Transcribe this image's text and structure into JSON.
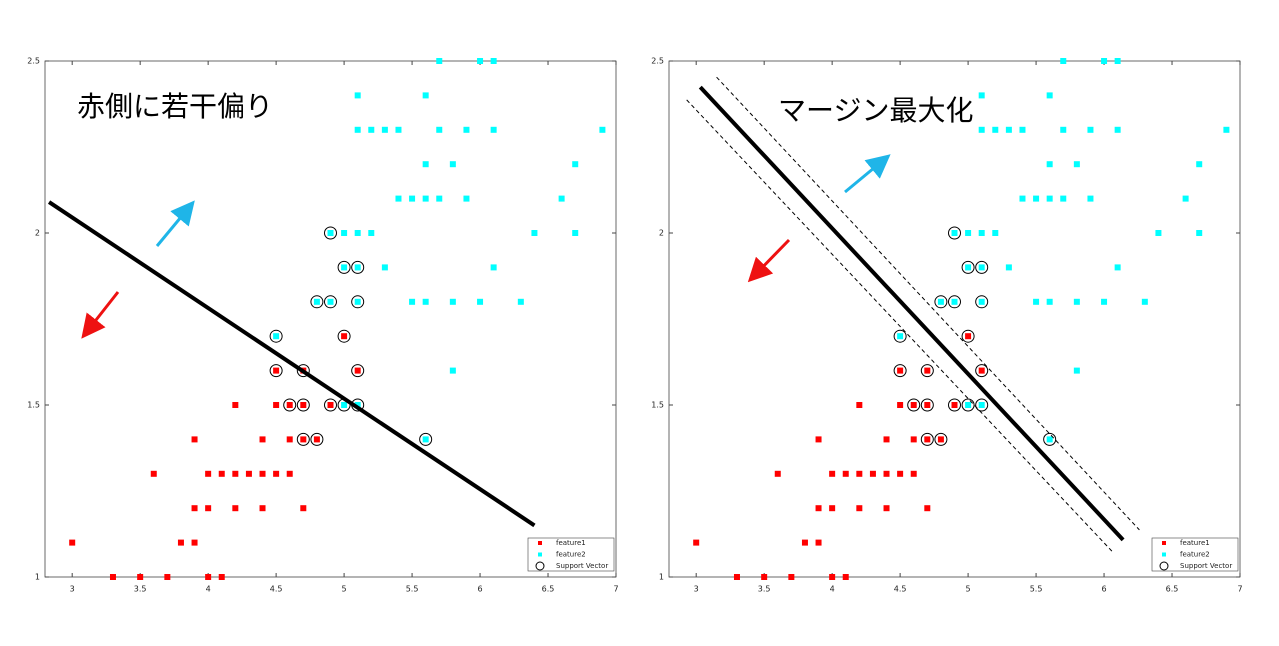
{
  "chart_data": [
    {
      "type": "scatter",
      "annotation": "赤側に若干偏り",
      "xlim": [
        2.8,
        7
      ],
      "ylim": [
        1,
        2.5
      ],
      "xticks": [
        3,
        3.5,
        4,
        4.5,
        5,
        5.5,
        6,
        6.5,
        7
      ],
      "yticks": [
        1,
        1.5,
        2,
        2.5
      ],
      "grid": false,
      "legend": "lower right",
      "series": [
        {
          "name": "feature1",
          "color": "#ff0000",
          "marker": "square",
          "x": [
            3.0,
            3.3,
            3.5,
            3.7,
            4.0,
            4.1,
            3.8,
            3.9,
            3.9,
            4.0,
            4.2,
            4.4,
            4.7,
            3.6,
            4.0,
            4.1,
            4.2,
            4.3,
            4.4,
            4.5,
            4.6,
            3.9,
            4.4,
            4.6,
            4.7,
            4.8,
            4.2,
            4.5,
            4.6,
            4.7,
            4.9,
            4.5,
            4.7,
            5.1,
            5.0
          ],
          "values": [
            1.1,
            1,
            1,
            1,
            1,
            1,
            1.1,
            1.1,
            1.2,
            1.2,
            1.2,
            1.2,
            1.2,
            1.3,
            1.3,
            1.3,
            1.3,
            1.3,
            1.3,
            1.3,
            1.3,
            1.4,
            1.4,
            1.4,
            1.4,
            1.4,
            1.5,
            1.5,
            1.5,
            1.5,
            1.5,
            1.6,
            1.6,
            1.6,
            1.7
          ]
        },
        {
          "name": "feature2",
          "color": "#00ffff",
          "marker": "square",
          "x": [
            5.7,
            6.0,
            6.1,
            5.1,
            5.6,
            5.1,
            5.2,
            5.3,
            5.4,
            5.7,
            5.9,
            6.1,
            6.9,
            5.6,
            5.8,
            6.7,
            5.4,
            5.5,
            5.6,
            5.7,
            5.9,
            6.6,
            4.9,
            5.0,
            5.1,
            5.2,
            6.4,
            6.7,
            5.0,
            5.1,
            5.3,
            6.1,
            4.8,
            4.9,
            5.1,
            5.5,
            5.6,
            5.8,
            6.0,
            6.3,
            4.5,
            5.8,
            5.0,
            5.1,
            5.6
          ],
          "values": [
            2.5,
            2.5,
            2.5,
            2.4,
            2.4,
            2.3,
            2.3,
            2.3,
            2.3,
            2.3,
            2.3,
            2.3,
            2.3,
            2.2,
            2.2,
            2.2,
            2.1,
            2.1,
            2.1,
            2.1,
            2.1,
            2.1,
            2,
            2,
            2,
            2,
            2,
            2,
            1.9,
            1.9,
            1.9,
            1.9,
            1.8,
            1.8,
            1.8,
            1.8,
            1.8,
            1.8,
            1.8,
            1.8,
            1.7,
            1.6,
            1.5,
            1.5,
            1.4
          ]
        },
        {
          "name": "Support Vector",
          "color": "#000000",
          "marker": "circle",
          "x": [
            4.9,
            5.0,
            5.1,
            4.8,
            4.9,
            5.1,
            4.5,
            5.0,
            4.5,
            4.7,
            5.1,
            4.6,
            4.7,
            4.9,
            5.0,
            5.1,
            4.7,
            4.8,
            5.6
          ],
          "values": [
            2,
            1.9,
            1.9,
            1.8,
            1.8,
            1.8,
            1.7,
            1.7,
            1.6,
            1.6,
            1.6,
            1.5,
            1.5,
            1.5,
            1.5,
            1.5,
            1.4,
            1.4,
            1.4
          ]
        }
      ],
      "lines": [
        {
          "style": "solid",
          "x": [
            2.83,
            6.4
          ],
          "y": [
            2.09,
            1.15
          ]
        }
      ]
    },
    {
      "type": "scatter",
      "annotation": "マージン最大化",
      "xlim": [
        2.8,
        7
      ],
      "ylim": [
        1,
        2.5
      ],
      "xticks": [
        3,
        3.5,
        4,
        4.5,
        5,
        5.5,
        6,
        6.5,
        7
      ],
      "yticks": [
        1,
        1.5,
        2,
        2.5
      ],
      "grid": false,
      "legend": "lower right",
      "series": [
        {
          "name": "feature1",
          "color": "#ff0000",
          "marker": "square",
          "x": [
            3.0,
            3.3,
            3.5,
            3.7,
            4.0,
            4.1,
            3.8,
            3.9,
            3.9,
            4.0,
            4.2,
            4.4,
            4.7,
            3.6,
            4.0,
            4.1,
            4.2,
            4.3,
            4.4,
            4.5,
            4.6,
            3.9,
            4.4,
            4.6,
            4.7,
            4.8,
            4.2,
            4.5,
            4.6,
            4.7,
            4.9,
            4.5,
            4.7,
            5.1,
            5.0
          ],
          "values": [
            1.1,
            1,
            1,
            1,
            1,
            1,
            1.1,
            1.1,
            1.2,
            1.2,
            1.2,
            1.2,
            1.2,
            1.3,
            1.3,
            1.3,
            1.3,
            1.3,
            1.3,
            1.3,
            1.3,
            1.4,
            1.4,
            1.4,
            1.4,
            1.4,
            1.5,
            1.5,
            1.5,
            1.5,
            1.5,
            1.6,
            1.6,
            1.6,
            1.7
          ]
        },
        {
          "name": "feature2",
          "color": "#00ffff",
          "marker": "square",
          "x": [
            5.7,
            6.0,
            6.1,
            5.1,
            5.6,
            5.1,
            5.2,
            5.3,
            5.4,
            5.7,
            5.9,
            6.1,
            6.9,
            5.6,
            5.8,
            6.7,
            5.4,
            5.5,
            5.6,
            5.7,
            5.9,
            6.6,
            4.9,
            5.0,
            5.1,
            5.2,
            6.4,
            6.7,
            5.0,
            5.1,
            5.3,
            6.1,
            4.8,
            4.9,
            5.1,
            5.5,
            5.6,
            5.8,
            6.0,
            6.3,
            4.5,
            5.8,
            5.0,
            5.1,
            5.6
          ],
          "values": [
            2.5,
            2.5,
            2.5,
            2.4,
            2.4,
            2.3,
            2.3,
            2.3,
            2.3,
            2.3,
            2.3,
            2.3,
            2.3,
            2.2,
            2.2,
            2.2,
            2.1,
            2.1,
            2.1,
            2.1,
            2.1,
            2.1,
            2,
            2,
            2,
            2,
            2,
            2,
            1.9,
            1.9,
            1.9,
            1.9,
            1.8,
            1.8,
            1.8,
            1.8,
            1.8,
            1.8,
            1.8,
            1.8,
            1.7,
            1.6,
            1.5,
            1.5,
            1.4
          ]
        },
        {
          "name": "Support Vector",
          "color": "#000000",
          "marker": "circle",
          "x": [
            4.9,
            5.0,
            5.1,
            4.8,
            4.9,
            5.1,
            4.5,
            5.0,
            4.5,
            4.7,
            5.1,
            4.6,
            4.7,
            4.9,
            5.0,
            5.1,
            4.7,
            4.8,
            5.6
          ],
          "values": [
            2,
            1.9,
            1.9,
            1.8,
            1.8,
            1.8,
            1.7,
            1.7,
            1.6,
            1.6,
            1.6,
            1.5,
            1.5,
            1.5,
            1.5,
            1.5,
            1.4,
            1.4,
            1.4
          ]
        }
      ],
      "lines": [
        {
          "style": "solid",
          "x": [
            3.03,
            6.14
          ],
          "y": [
            2.424,
            1.108
          ]
        },
        {
          "style": "dashed",
          "x": [
            3.15,
            6.26
          ],
          "y": [
            2.453,
            1.137
          ]
        },
        {
          "style": "dashed",
          "x": [
            2.93,
            6.07
          ],
          "y": [
            2.387,
            1.07
          ]
        }
      ]
    }
  ]
}
